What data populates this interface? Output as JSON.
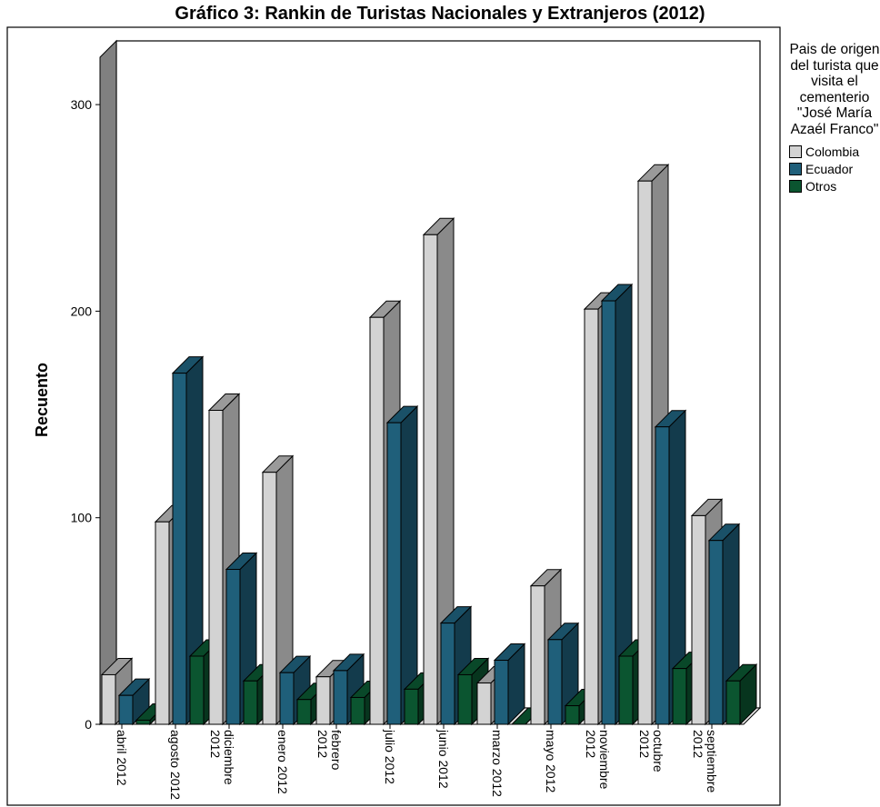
{
  "chart_data": {
    "type": "bar",
    "title": "Gráfico 3: Rankin de Turistas Nacionales y Extranjeros (2012)",
    "ylabel": "Recuento",
    "xlabel": "",
    "ylim": [
      0,
      300
    ],
    "yticks": [
      "0",
      "100",
      "200",
      "300"
    ],
    "categories": [
      "abril 2012",
      "agosto 2012",
      "diciembre 2012",
      "enero 2012",
      "febrero 2012",
      "julio 2012",
      "junio 2012",
      "marzo 2012",
      "mayo 2012",
      "noviembre 2012",
      "octubre 2012",
      "septiembre 2012"
    ],
    "series": [
      {
        "name": "Colombia",
        "color": "#d3d3d3",
        "values": [
          24,
          98,
          152,
          122,
          23,
          197,
          237,
          20,
          67,
          201,
          263,
          101
        ]
      },
      {
        "name": "Ecuador",
        "color": "#1f5f7a",
        "values": [
          14,
          170,
          75,
          25,
          26,
          146,
          49,
          31,
          41,
          205,
          144,
          89
        ]
      },
      {
        "name": "Otros",
        "color": "#0b5530",
        "values": [
          2,
          33,
          21,
          12,
          13,
          17,
          24,
          0,
          9,
          33,
          27,
          21
        ]
      }
    ],
    "legend": {
      "title": "Pais de origen del turista que visita el cementerio \"José María Azaél Franco\"",
      "placement": "right"
    },
    "grid": false
  }
}
